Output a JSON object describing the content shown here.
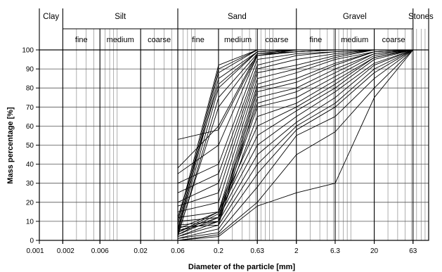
{
  "chart_data": {
    "type": "line",
    "title": "",
    "xlabel": "Diameter of the particle [mm]",
    "ylabel": "Mass percentage [%]",
    "x_scale": "log",
    "xlim": [
      0.001,
      100
    ],
    "ylim": [
      0,
      100
    ],
    "x_ticks": [
      0.001,
      0.002,
      0.006,
      0.02,
      0.06,
      0.2,
      0.63,
      2,
      6.3,
      20,
      63
    ],
    "x_tick_labels": [
      "0.001",
      "0.002",
      "0.006",
      "0.02",
      "0.06",
      "0.2",
      "0.63",
      "2",
      "6.3",
      "20",
      "63"
    ],
    "y_ticks": [
      0,
      10,
      20,
      30,
      40,
      50,
      60,
      70,
      80,
      90,
      100
    ],
    "y_tick_labels": [
      "0",
      "10",
      "20",
      "30",
      "40",
      "50",
      "60",
      "70",
      "80",
      "90",
      "100"
    ],
    "grid": true,
    "soil_classes": [
      {
        "name": "Clay",
        "from": 0.001,
        "to": 0.002
      },
      {
        "name": "Silt",
        "from": 0.002,
        "to": 0.06
      },
      {
        "name": "Sand",
        "from": 0.06,
        "to": 2
      },
      {
        "name": "Gravel",
        "from": 2,
        "to": 63
      },
      {
        "name": "Stones",
        "from": 63,
        "to": 100
      }
    ],
    "soil_subclasses": [
      {
        "name": "fine",
        "from": 0.002,
        "to": 0.006
      },
      {
        "name": "medium",
        "from": 0.006,
        "to": 0.02
      },
      {
        "name": "coarse",
        "from": 0.02,
        "to": 0.06
      },
      {
        "name": "fine",
        "from": 0.06,
        "to": 0.2
      },
      {
        "name": "medium",
        "from": 0.2,
        "to": 0.63
      },
      {
        "name": "coarse",
        "from": 0.63,
        "to": 2
      },
      {
        "name": "fine",
        "from": 2,
        "to": 6.3
      },
      {
        "name": "medium",
        "from": 6.3,
        "to": 20
      },
      {
        "name": "coarse",
        "from": 20,
        "to": 63
      }
    ],
    "x": [
      0.06,
      0.2,
      0.63,
      2,
      6.3,
      20,
      63
    ],
    "series": [
      {
        "values": [
          0,
          2,
          18,
          25,
          30,
          75,
          100
        ]
      },
      {
        "values": [
          0,
          3,
          20,
          45,
          57,
          80,
          100
        ]
      },
      {
        "values": [
          1,
          4,
          28,
          55,
          65,
          85,
          100
        ]
      },
      {
        "values": [
          1,
          6,
          35,
          58,
          70,
          88,
          100
        ]
      },
      {
        "values": [
          2,
          8,
          40,
          60,
          72,
          90,
          100
        ]
      },
      {
        "values": [
          2,
          10,
          45,
          62,
          75,
          92,
          100
        ]
      },
      {
        "values": [
          3,
          12,
          50,
          65,
          78,
          93,
          100
        ]
      },
      {
        "values": [
          3,
          14,
          55,
          68,
          80,
          95,
          100
        ]
      },
      {
        "values": [
          4,
          15,
          60,
          70,
          82,
          96,
          100
        ]
      },
      {
        "values": [
          5,
          10,
          65,
          72,
          84,
          96,
          100
        ]
      },
      {
        "values": [
          5,
          12,
          70,
          75,
          86,
          97,
          100
        ]
      },
      {
        "values": [
          6,
          15,
          72,
          78,
          88,
          98,
          100
        ]
      },
      {
        "values": [
          7,
          8,
          75,
          80,
          90,
          98,
          100
        ]
      },
      {
        "values": [
          8,
          10,
          78,
          83,
          92,
          99,
          100
        ]
      },
      {
        "values": [
          10,
          12,
          80,
          85,
          93,
          99,
          100
        ]
      },
      {
        "values": [
          12,
          15,
          82,
          88,
          95,
          99,
          100
        ]
      },
      {
        "values": [
          15,
          20,
          85,
          90,
          96,
          100,
          100
        ]
      },
      {
        "values": [
          18,
          25,
          88,
          92,
          97,
          100,
          100
        ]
      },
      {
        "values": [
          20,
          30,
          90,
          95,
          98,
          100,
          100
        ]
      },
      {
        "values": [
          25,
          35,
          92,
          97,
          99,
          100,
          100
        ]
      },
      {
        "values": [
          30,
          40,
          95,
          98,
          99,
          100,
          100
        ]
      },
      {
        "values": [
          35,
          50,
          97,
          99,
          100,
          100,
          100
        ]
      },
      {
        "values": [
          38,
          60,
          98,
          99,
          100,
          100,
          100
        ]
      },
      {
        "values": [
          2,
          75,
          98,
          100,
          100,
          100,
          100
        ]
      },
      {
        "values": [
          4,
          80,
          99,
          100,
          100,
          100,
          100
        ]
      },
      {
        "values": [
          5,
          85,
          99,
          100,
          100,
          100,
          100
        ]
      },
      {
        "values": [
          6,
          88,
          100,
          100,
          100,
          100,
          100
        ]
      },
      {
        "values": [
          8,
          90,
          100,
          100,
          100,
          100,
          100
        ]
      },
      {
        "values": [
          10,
          92,
          100,
          100,
          100,
          100,
          100
        ]
      },
      {
        "values": [
          3,
          70,
          97,
          99,
          100,
          100,
          100
        ]
      },
      {
        "values": [
          12,
          82,
          99,
          100,
          100,
          100,
          100
        ]
      },
      {
        "values": [
          53,
          58,
          97,
          100,
          100,
          100,
          100
        ]
      }
    ]
  }
}
